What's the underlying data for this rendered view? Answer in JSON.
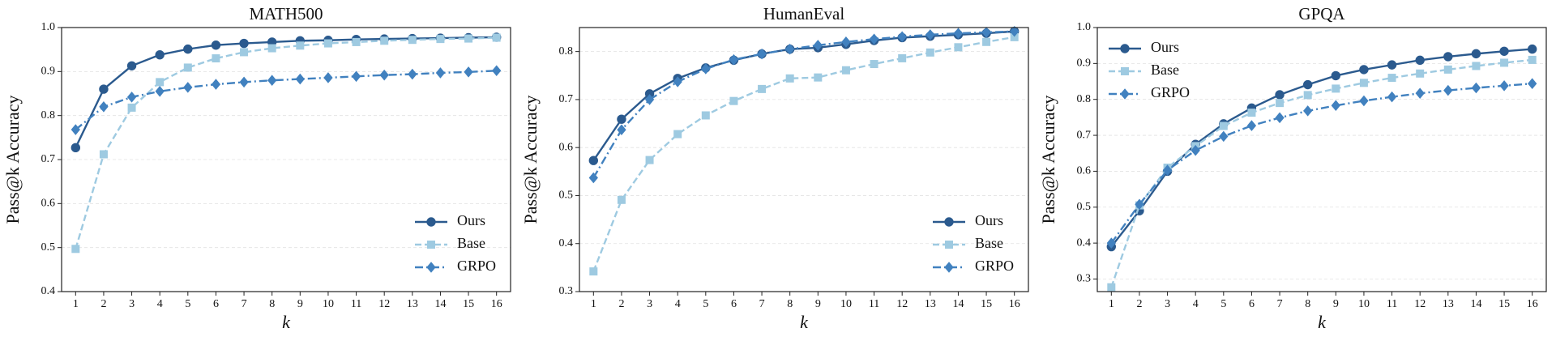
{
  "chart_data": [
    {
      "type": "line",
      "title": "MATH500",
      "x_label": "k",
      "y_label": "Pass@k Accuracy",
      "x": [
        1,
        2,
        3,
        4,
        5,
        6,
        7,
        8,
        9,
        10,
        11,
        12,
        13,
        14,
        15,
        16
      ],
      "xlim": [
        0.5,
        16.5
      ],
      "xticks": [
        1,
        2,
        3,
        4,
        5,
        6,
        7,
        8,
        9,
        10,
        11,
        12,
        13,
        14,
        15,
        16
      ],
      "ylim": [
        0.4,
        1.0
      ],
      "yticks": [
        0.4,
        0.5,
        0.6,
        0.7,
        0.8,
        0.9,
        {
          "value": 1,
          "label": "1.0"
        }
      ],
      "grid": true,
      "legend": "lower right",
      "series": [
        {
          "name": "Ours",
          "color": "#2b5a8e",
          "marker": "circle",
          "linestyle": "solid",
          "values": [
            0.727,
            0.86,
            0.913,
            0.938,
            0.951,
            0.96,
            0.964,
            0.967,
            0.97,
            0.971,
            0.973,
            0.974,
            0.975,
            0.976,
            0.977,
            0.978
          ]
        },
        {
          "name": "Base",
          "color": "#9ecae1",
          "marker": "square",
          "linestyle": "dashed",
          "values": [
            0.497,
            0.712,
            0.818,
            0.876,
            0.909,
            0.93,
            0.944,
            0.953,
            0.959,
            0.964,
            0.967,
            0.97,
            0.972,
            0.974,
            0.975,
            0.977
          ]
        },
        {
          "name": "GRPO",
          "color": "#4181bf",
          "marker": "diamond",
          "linestyle": "dashdot",
          "values": [
            0.768,
            0.82,
            0.842,
            0.855,
            0.864,
            0.871,
            0.876,
            0.88,
            0.883,
            0.886,
            0.889,
            0.892,
            0.894,
            0.897,
            0.899,
            0.902
          ]
        }
      ]
    },
    {
      "type": "line",
      "title": "HumanEval",
      "x_label": "k",
      "y_label": "Pass@k Accuracy",
      "x": [
        1,
        2,
        3,
        4,
        5,
        6,
        7,
        8,
        9,
        10,
        11,
        12,
        13,
        14,
        15,
        16
      ],
      "xlim": [
        0.5,
        16.5
      ],
      "xticks": [
        1,
        2,
        3,
        4,
        5,
        6,
        7,
        8,
        9,
        10,
        11,
        12,
        13,
        14,
        15,
        16
      ],
      "ylim": [
        0.3,
        0.85
      ],
      "yticks": [
        0.3,
        0.4,
        0.5,
        0.6,
        0.7,
        0.8
      ],
      "grid": true,
      "legend": "lower right",
      "series": [
        {
          "name": "Ours",
          "color": "#2b5a8e",
          "marker": "circle",
          "linestyle": "solid",
          "values": [
            0.573,
            0.659,
            0.712,
            0.744,
            0.766,
            0.782,
            0.795,
            0.805,
            0.808,
            0.815,
            0.823,
            0.829,
            0.832,
            0.835,
            0.838,
            0.842
          ]
        },
        {
          "name": "Base",
          "color": "#9ecae1",
          "marker": "square",
          "linestyle": "dashed",
          "values": [
            0.342,
            0.491,
            0.574,
            0.628,
            0.667,
            0.697,
            0.722,
            0.744,
            0.746,
            0.761,
            0.774,
            0.786,
            0.798,
            0.809,
            0.82,
            0.83
          ]
        },
        {
          "name": "GRPO",
          "color": "#4181bf",
          "marker": "diamond",
          "linestyle": "dashdot",
          "values": [
            0.537,
            0.637,
            0.7,
            0.737,
            0.764,
            0.783,
            0.795,
            0.805,
            0.813,
            0.82,
            0.826,
            0.831,
            0.835,
            0.838,
            0.84,
            0.842
          ]
        }
      ]
    },
    {
      "type": "line",
      "title": "GPQA",
      "x_label": "k",
      "y_label": "Pass@k Accuracy",
      "x": [
        1,
        2,
        3,
        4,
        5,
        6,
        7,
        8,
        9,
        10,
        11,
        12,
        13,
        14,
        15,
        16
      ],
      "xlim": [
        0.5,
        16.5
      ],
      "xticks": [
        1,
        2,
        3,
        4,
        5,
        6,
        7,
        8,
        9,
        10,
        11,
        12,
        13,
        14,
        15,
        16
      ],
      "ylim": [
        0.265,
        1.0
      ],
      "yticks": [
        0.3,
        0.4,
        0.5,
        0.6,
        0.7,
        0.8,
        0.9,
        {
          "value": 1,
          "label": "1.0"
        }
      ],
      "grid": true,
      "legend": "upper left",
      "series": [
        {
          "name": "Ours",
          "color": "#2b5a8e",
          "marker": "circle",
          "linestyle": "solid",
          "values": [
            0.39,
            0.49,
            0.6,
            0.675,
            0.732,
            0.776,
            0.813,
            0.841,
            0.866,
            0.883,
            0.896,
            0.909,
            0.919,
            0.927,
            0.934,
            0.94
          ]
        },
        {
          "name": "Base",
          "color": "#9ecae1",
          "marker": "square",
          "linestyle": "dashed",
          "values": [
            0.277,
            0.505,
            0.61,
            0.67,
            0.726,
            0.763,
            0.79,
            0.812,
            0.83,
            0.846,
            0.86,
            0.872,
            0.883,
            0.893,
            0.902,
            0.91
          ]
        },
        {
          "name": "GRPO",
          "color": "#4181bf",
          "marker": "diamond",
          "linestyle": "dashdot",
          "values": [
            0.4,
            0.508,
            0.603,
            0.658,
            0.697,
            0.727,
            0.749,
            0.768,
            0.783,
            0.796,
            0.807,
            0.817,
            0.825,
            0.832,
            0.838,
            0.844
          ]
        }
      ]
    }
  ]
}
